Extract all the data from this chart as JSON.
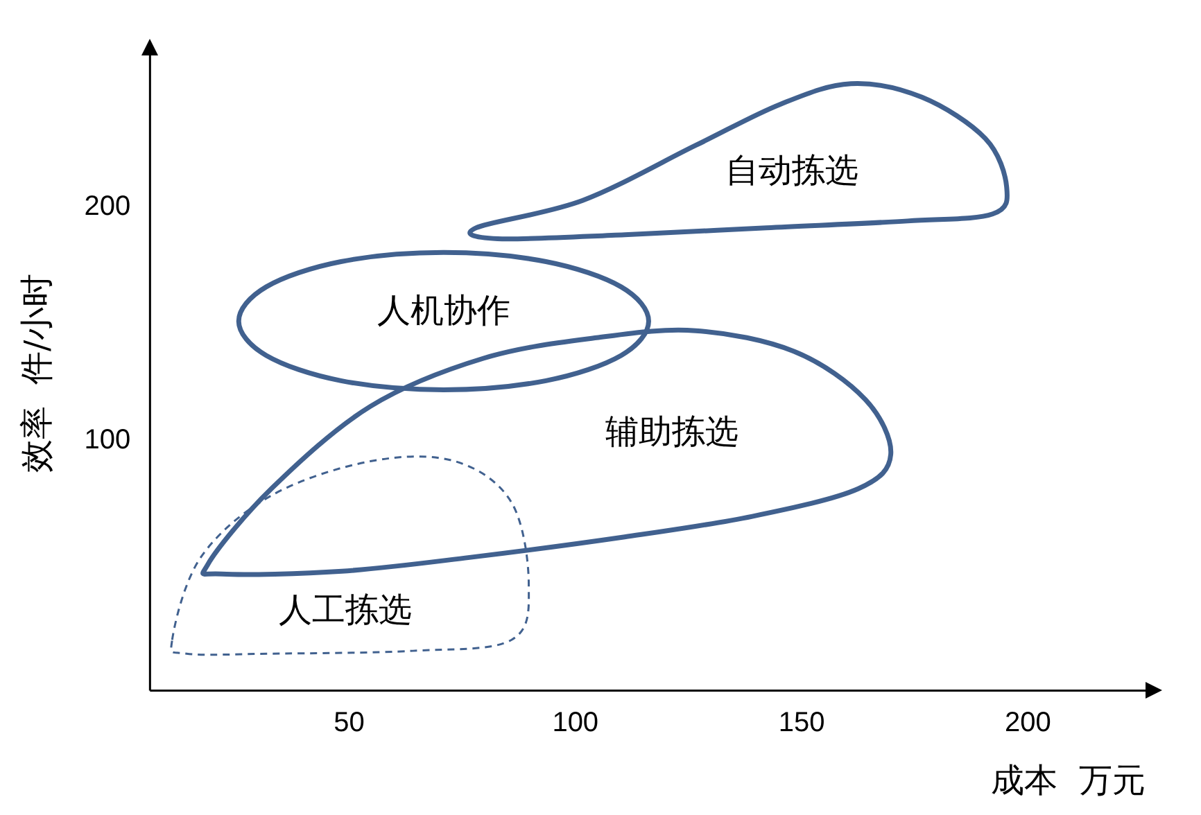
{
  "chart_data": {
    "type": "line",
    "xlabel": "成本  万元",
    "ylabel": "效率  件/小时",
    "xlim": [
      6,
      226
    ],
    "ylim": [
      -7,
      265
    ],
    "xticks": [
      50,
      100,
      150,
      200
    ],
    "yticks": [
      100,
      200
    ],
    "annotations": [
      "自动拣选",
      "人机协作",
      "辅助拣选",
      "人工拣选"
    ]
  }
}
